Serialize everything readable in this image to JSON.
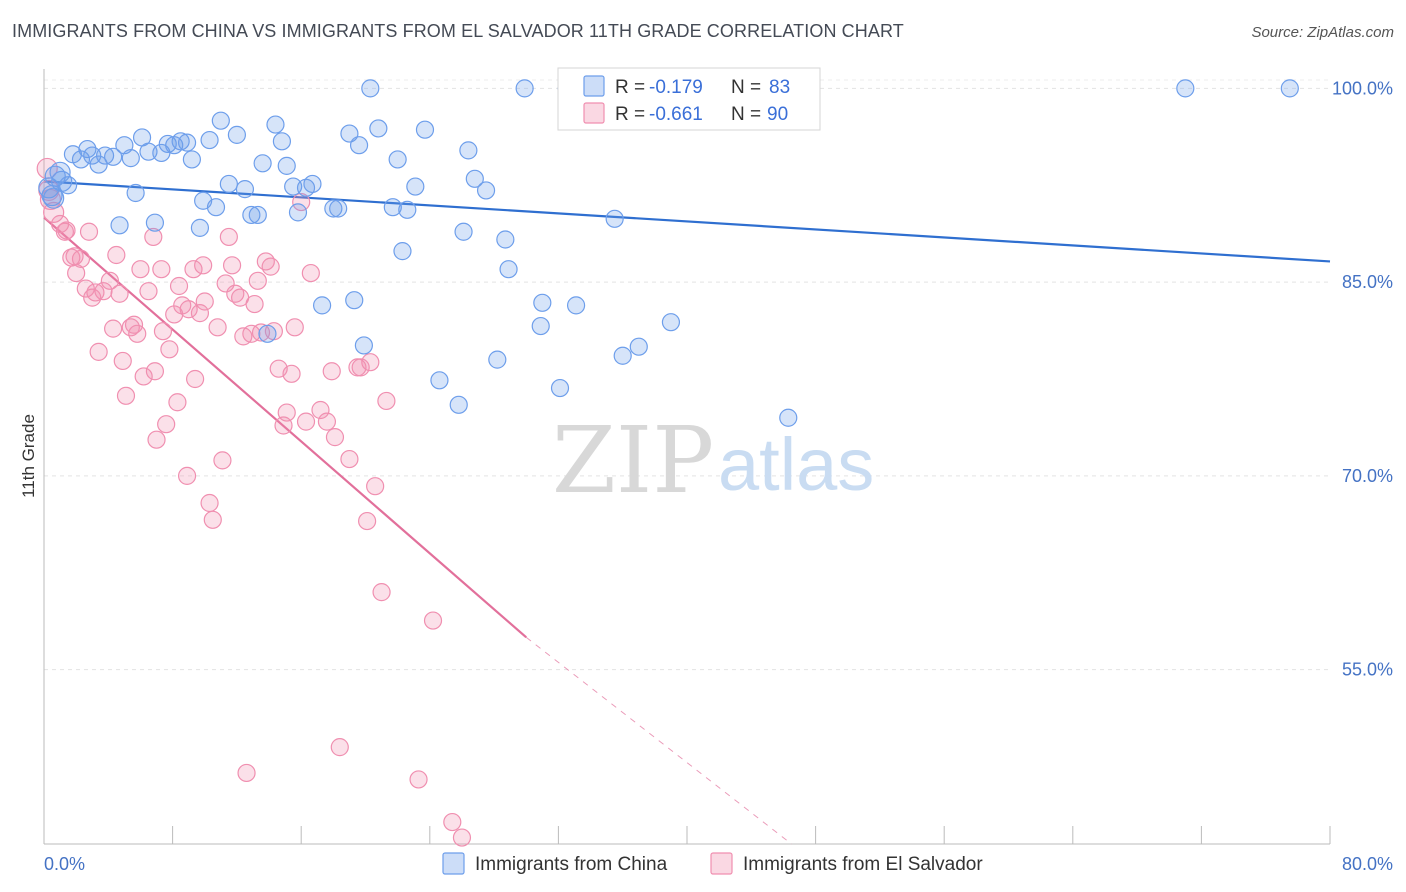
{
  "title": "IMMIGRANTS FROM CHINA VS IMMIGRANTS FROM EL SALVADOR 11TH GRADE CORRELATION CHART",
  "source": "Source: ZipAtlas.com",
  "watermark": {
    "zip": "ZIP",
    "atlas": "atlas"
  },
  "chart_data": {
    "type": "scatter",
    "ylabel": "11th Grade",
    "xlabel": "",
    "xlim": [
      0,
      80
    ],
    "ylim": [
      41.5,
      101.5
    ],
    "x_tick_labels": [
      "0.0%",
      "80.0%"
    ],
    "y_ticks": [
      100,
      85,
      70,
      55
    ],
    "y_tick_labels": [
      "100.0%",
      "85.0%",
      "70.0%",
      "55.0%"
    ],
    "grid": true,
    "legend_position": "top-center",
    "legend": [
      {
        "r_label": "R = ",
        "r_value": "-0.179",
        "n_label": "N = ",
        "n_value": "83"
      },
      {
        "r_label": "R = ",
        "r_value": "-0.661",
        "n_label": "N = ",
        "n_value": "90"
      }
    ],
    "series": [
      {
        "name": "Immigrants from China",
        "color": "#6d9eeb",
        "line_color": "#2f6fd0",
        "trend": {
          "x": [
            0,
            80
          ],
          "y": [
            92.8,
            86.6
          ]
        },
        "points": [
          [
            0.3,
            92.3
          ],
          [
            0.5,
            91.7
          ],
          [
            0.7,
            93.2
          ],
          [
            1.0,
            93.5
          ],
          [
            1.5,
            92.5
          ],
          [
            1.8,
            94.9
          ],
          [
            2.3,
            94.5
          ],
          [
            2.7,
            95.3
          ],
          [
            3.0,
            94.8
          ],
          [
            3.4,
            94.1
          ],
          [
            3.8,
            94.8
          ],
          [
            4.3,
            94.7
          ],
          [
            4.7,
            89.4
          ],
          [
            5.0,
            95.6
          ],
          [
            5.4,
            94.6
          ],
          [
            5.7,
            91.9
          ],
          [
            6.1,
            96.2
          ],
          [
            6.5,
            95.1
          ],
          [
            6.9,
            89.6
          ],
          [
            7.3,
            95.0
          ],
          [
            7.7,
            95.7
          ],
          [
            8.1,
            95.6
          ],
          [
            8.5,
            95.9
          ],
          [
            8.9,
            95.8
          ],
          [
            9.2,
            94.5
          ],
          [
            9.7,
            89.2
          ],
          [
            9.9,
            91.3
          ],
          [
            10.3,
            96.0
          ],
          [
            10.7,
            90.8
          ],
          [
            11.0,
            97.5
          ],
          [
            11.5,
            92.6
          ],
          [
            12.0,
            96.4
          ],
          [
            12.5,
            92.2
          ],
          [
            12.9,
            90.2
          ],
          [
            13.3,
            90.2
          ],
          [
            13.6,
            94.2
          ],
          [
            13.9,
            81.0
          ],
          [
            14.4,
            97.2
          ],
          [
            14.8,
            95.9
          ],
          [
            15.1,
            94.0
          ],
          [
            15.5,
            92.4
          ],
          [
            15.8,
            90.4
          ],
          [
            16.3,
            92.3
          ],
          [
            16.7,
            92.6
          ],
          [
            17.3,
            83.2
          ],
          [
            18.0,
            90.7
          ],
          [
            18.3,
            90.7
          ],
          [
            19.0,
            96.5
          ],
          [
            19.3,
            83.6
          ],
          [
            19.6,
            95.6
          ],
          [
            19.9,
            80.1
          ],
          [
            20.3,
            100.0
          ],
          [
            20.8,
            96.9
          ],
          [
            21.7,
            90.8
          ],
          [
            22.0,
            94.5
          ],
          [
            22.3,
            87.4
          ],
          [
            22.6,
            90.6
          ],
          [
            23.1,
            92.4
          ],
          [
            23.7,
            96.8
          ],
          [
            24.6,
            77.4
          ],
          [
            25.8,
            75.5
          ],
          [
            26.1,
            88.9
          ],
          [
            26.4,
            95.2
          ],
          [
            26.8,
            93.0
          ],
          [
            27.5,
            92.1
          ],
          [
            28.2,
            79.0
          ],
          [
            28.7,
            88.3
          ],
          [
            28.9,
            86.0
          ],
          [
            29.9,
            100.0
          ],
          [
            30.9,
            81.6
          ],
          [
            31.0,
            83.4
          ],
          [
            32.1,
            76.8
          ],
          [
            32.5,
            100.0
          ],
          [
            33.1,
            83.2
          ],
          [
            35.5,
            89.9
          ],
          [
            36.0,
            79.3
          ],
          [
            37.0,
            80.0
          ],
          [
            39.0,
            81.9
          ],
          [
            46.3,
            74.5
          ],
          [
            71.0,
            100.0
          ],
          [
            77.5,
            100.0
          ],
          [
            0.6,
            91.5
          ],
          [
            1.1,
            92.8
          ]
        ]
      },
      {
        "name": "Immigrants from El Salvador",
        "color": "#f08fb0",
        "line_color": "#e2709b",
        "trend": {
          "x": [
            0,
            30
          ],
          "y": [
            90.0,
            57.5
          ]
        },
        "trend_dashed": {
          "x": [
            30,
            46.5
          ],
          "y": [
            57.5,
            41.5
          ]
        },
        "points": [
          [
            0.2,
            93.8
          ],
          [
            0.4,
            91.4
          ],
          [
            0.6,
            90.4
          ],
          [
            1.0,
            89.5
          ],
          [
            1.3,
            88.9
          ],
          [
            1.4,
            89.0
          ],
          [
            1.7,
            86.9
          ],
          [
            1.9,
            87.0
          ],
          [
            2.0,
            85.7
          ],
          [
            2.3,
            86.8
          ],
          [
            2.6,
            84.5
          ],
          [
            2.8,
            88.9
          ],
          [
            3.0,
            83.8
          ],
          [
            3.2,
            84.2
          ],
          [
            3.4,
            79.6
          ],
          [
            3.7,
            84.3
          ],
          [
            4.1,
            85.1
          ],
          [
            4.3,
            81.4
          ],
          [
            4.5,
            87.1
          ],
          [
            4.7,
            84.1
          ],
          [
            4.9,
            78.9
          ],
          [
            5.1,
            76.2
          ],
          [
            5.4,
            81.5
          ],
          [
            5.6,
            81.7
          ],
          [
            5.8,
            81.0
          ],
          [
            6.0,
            86.0
          ],
          [
            6.2,
            77.7
          ],
          [
            6.5,
            84.3
          ],
          [
            6.8,
            88.5
          ],
          [
            6.9,
            78.1
          ],
          [
            7.0,
            72.8
          ],
          [
            7.3,
            86.0
          ],
          [
            7.4,
            81.2
          ],
          [
            7.6,
            74.0
          ],
          [
            7.8,
            79.8
          ],
          [
            8.1,
            82.5
          ],
          [
            8.3,
            75.7
          ],
          [
            8.4,
            84.7
          ],
          [
            8.6,
            83.2
          ],
          [
            8.9,
            70.0
          ],
          [
            9.0,
            82.9
          ],
          [
            9.3,
            86.0
          ],
          [
            9.4,
            77.5
          ],
          [
            9.7,
            82.6
          ],
          [
            9.9,
            86.3
          ],
          [
            10.0,
            83.5
          ],
          [
            10.3,
            67.9
          ],
          [
            10.5,
            66.6
          ],
          [
            10.8,
            81.5
          ],
          [
            11.1,
            71.2
          ],
          [
            11.3,
            84.9
          ],
          [
            11.5,
            88.5
          ],
          [
            11.7,
            86.3
          ],
          [
            11.9,
            84.1
          ],
          [
            12.2,
            83.8
          ],
          [
            12.4,
            80.8
          ],
          [
            12.6,
            47.0
          ],
          [
            12.9,
            81.0
          ],
          [
            13.1,
            83.3
          ],
          [
            13.3,
            85.1
          ],
          [
            13.5,
            81.1
          ],
          [
            13.8,
            86.6
          ],
          [
            14.1,
            86.2
          ],
          [
            14.3,
            81.2
          ],
          [
            14.6,
            78.3
          ],
          [
            14.9,
            73.9
          ],
          [
            15.1,
            74.9
          ],
          [
            15.4,
            77.9
          ],
          [
            15.6,
            81.5
          ],
          [
            16.0,
            91.2
          ],
          [
            16.3,
            74.2
          ],
          [
            16.6,
            85.7
          ],
          [
            17.2,
            75.1
          ],
          [
            17.6,
            74.2
          ],
          [
            17.9,
            78.1
          ],
          [
            18.1,
            73.0
          ],
          [
            18.4,
            49.0
          ],
          [
            19.0,
            71.3
          ],
          [
            19.5,
            78.4
          ],
          [
            19.7,
            78.4
          ],
          [
            20.1,
            66.5
          ],
          [
            20.3,
            78.8
          ],
          [
            20.6,
            69.2
          ],
          [
            21.0,
            61.0
          ],
          [
            21.3,
            75.8
          ],
          [
            23.3,
            46.5
          ],
          [
            24.2,
            58.8
          ],
          [
            25.4,
            43.2
          ],
          [
            26.0,
            42.0
          ],
          [
            0.3,
            92.1
          ]
        ]
      }
    ]
  }
}
